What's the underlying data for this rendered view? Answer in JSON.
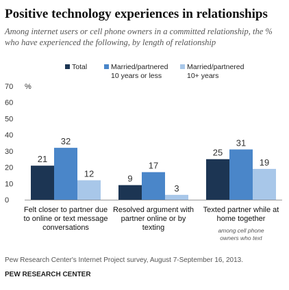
{
  "title": "Positive technology experiences in relationships",
  "subtitle_lines": [
    "Among internet users or cell phone owners in a committed relationship, the %",
    "who have experienced the following, by length of relationship"
  ],
  "source": "Pew Research Center's Internet Project survey, August 7-September 16, 2013.",
  "organization": "PEW RESEARCH CENTER",
  "colors": {
    "total": "#1c3553",
    "le10": "#4a86c9",
    "gt10": "#a8c7e9",
    "axis": "#999999"
  },
  "chart_data": {
    "type": "bar",
    "title": "Positive technology experiences in relationships",
    "xlabel": "",
    "ylabel": "%",
    "ylim": [
      0,
      70
    ],
    "yticks": [
      0,
      10,
      20,
      30,
      40,
      50,
      60,
      70
    ],
    "grid": false,
    "legend_position": "top",
    "categories": [
      "Felt closer to partner due to online or text message conversations",
      "Resolved argument with partner online or by texting",
      "Texted partner while at home together"
    ],
    "category_lines": [
      [
        "Felt closer to partner due",
        "to online or text message",
        "conversations"
      ],
      [
        "Resolved argument with",
        "partner online or by",
        "texting"
      ],
      [
        "Texted partner while at",
        "home together"
      ]
    ],
    "category_notes": [
      "",
      "",
      "among cell phone owners who text"
    ],
    "category_note_lines": [
      [],
      [],
      [
        "among cell phone",
        "owners who text"
      ]
    ],
    "series": [
      {
        "name": "Total",
        "legend_lines": [
          "Total"
        ],
        "values": [
          21,
          9,
          25
        ]
      },
      {
        "name": "Married/partnered 10 years or less",
        "legend_lines": [
          "Married/partnered",
          "10 years or less"
        ],
        "values": [
          32,
          17,
          31
        ]
      },
      {
        "name": "Married/partnered 10+ years",
        "legend_lines": [
          "Married/partnered",
          "10+ years"
        ],
        "values": [
          12,
          3,
          19
        ]
      }
    ]
  }
}
